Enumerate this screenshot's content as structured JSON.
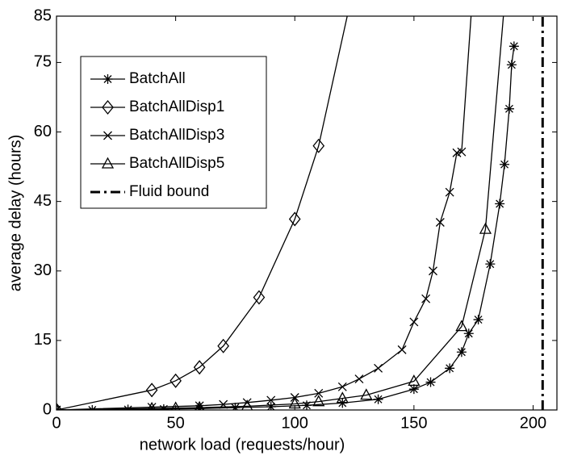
{
  "chart_data": {
    "type": "line",
    "x_label": "network load (requests/hour)",
    "y_label": "average delay (hours)",
    "xlim": [
      0,
      210
    ],
    "xticks": [
      0,
      50,
      100,
      150,
      200
    ],
    "ylim": [
      0,
      85
    ],
    "yticks": [
      0,
      15,
      30,
      45,
      60,
      75,
      85
    ],
    "legend": "upper left",
    "series": [
      {
        "name": "BatchAll",
        "color": "#000000",
        "marker": "asterisk",
        "x": [
          0,
          15,
          30,
          45,
          60,
          75,
          90,
          105,
          120,
          135,
          150,
          157,
          165,
          170,
          173,
          177,
          182,
          186,
          188,
          190,
          191,
          192
        ],
        "values": [
          0,
          0,
          0.1,
          0.2,
          0.3,
          0.5,
          0.7,
          1,
          1.5,
          2.3,
          4.5,
          6,
          9,
          12.5,
          16.5,
          19.5,
          31.5,
          44.5,
          53,
          65,
          74.5,
          78.5
        ]
      },
      {
        "name": "BatchAllDisp1",
        "color": "#000000",
        "marker": "diamond",
        "x": [
          0,
          40,
          50,
          60,
          70,
          85,
          100,
          110,
          125
        ],
        "values": [
          0,
          4.3,
          6.3,
          9.2,
          13.8,
          24.3,
          41.2,
          57,
          92
        ]
      },
      {
        "name": "BatchAllDisp3",
        "color": "#000000",
        "marker": "cross",
        "x": [
          0,
          40,
          60,
          70,
          80,
          90,
          100,
          110,
          120,
          127,
          135,
          145,
          150,
          155,
          158,
          161,
          165,
          168,
          170,
          176
        ],
        "values": [
          0,
          0.6,
          0.9,
          1.2,
          1.6,
          2.1,
          2.7,
          3.6,
          5,
          6.7,
          9,
          13,
          19,
          24,
          30,
          40.5,
          47,
          55.5,
          55.7,
          100
        ]
      },
      {
        "name": "BatchAllDisp5",
        "color": "#000000",
        "marker": "triangle",
        "x": [
          0,
          40,
          50,
          60,
          80,
          100,
          110,
          120,
          130,
          150,
          170,
          180,
          190
        ],
        "values": [
          0,
          0.3,
          0.4,
          0.5,
          0.8,
          1.3,
          1.8,
          2.5,
          3.2,
          6.2,
          18,
          39,
          100
        ]
      },
      {
        "name": "Fluid bound",
        "color": "#000000",
        "marker": "none",
        "linestyle": "dashdot",
        "x": [
          204,
          204
        ],
        "values": [
          0,
          85
        ]
      }
    ]
  }
}
